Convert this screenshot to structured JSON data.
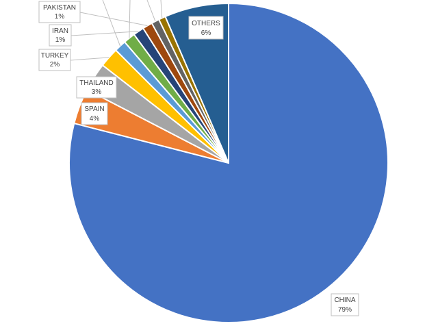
{
  "chart_data": {
    "type": "pie",
    "title": "",
    "slices": [
      {
        "label": "CHINA",
        "pct_text": "79%",
        "value": 79.0,
        "color": "#4472c4"
      },
      {
        "label": "SPAIN",
        "pct_text": "4%",
        "value": 3.6,
        "color": "#ed7d31"
      },
      {
        "label": "THAILAND",
        "pct_text": "3%",
        "value": 2.9,
        "color": "#a5a5a5"
      },
      {
        "label": "TURKEY",
        "pct_text": "2%",
        "value": 2.0,
        "color": "#ffc000"
      },
      {
        "label": "",
        "pct_text": "",
        "value": 1.2,
        "color": "#5b9bd5"
      },
      {
        "label": "",
        "pct_text": "",
        "value": 1.2,
        "color": "#70ad47"
      },
      {
        "label": "IRAN",
        "pct_text": "1%",
        "value": 1.1,
        "color": "#264478"
      },
      {
        "label": "PAKISTAN",
        "pct_text": "1%",
        "value": 1.0,
        "color": "#9e480e"
      },
      {
        "label": "",
        "pct_text": "",
        "value": 0.8,
        "color": "#636363"
      },
      {
        "label": "",
        "pct_text": "",
        "value": 0.7,
        "color": "#997300"
      },
      {
        "label": "OTHERS",
        "pct_text": "6%",
        "value": 6.5,
        "color": "#255e91"
      }
    ]
  }
}
